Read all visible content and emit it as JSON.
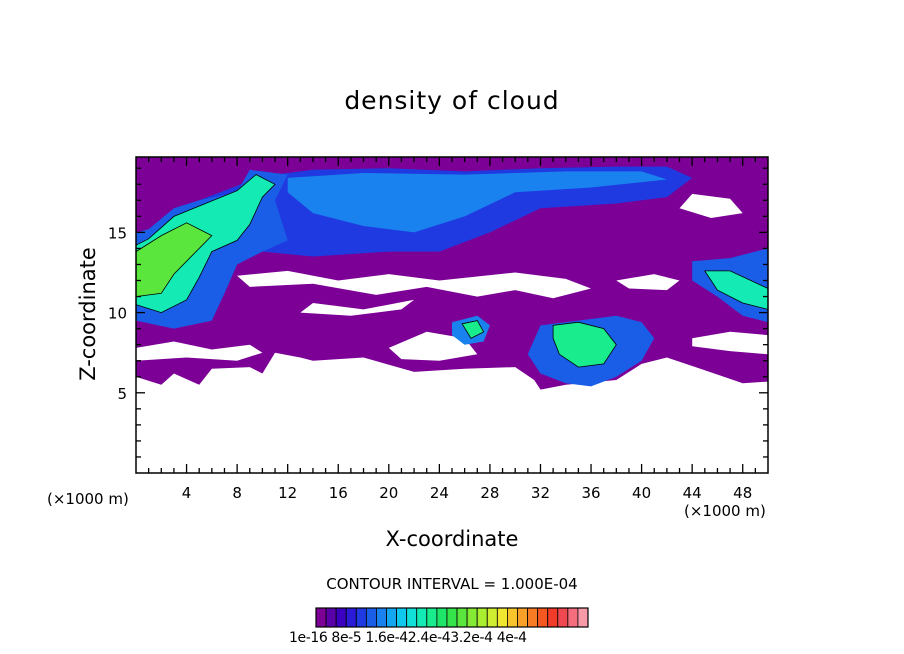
{
  "chart_data": {
    "type": "heatmap",
    "title": "density of cloud",
    "xlabel": "X-coordinate",
    "ylabel": "Z-coordinate",
    "x_unit": "(×1000 m)",
    "xlim": [
      0,
      50
    ],
    "ylim": [
      0,
      19.7
    ],
    "x_ticks": [
      4,
      8,
      12,
      16,
      20,
      24,
      28,
      32,
      36,
      40,
      44,
      48
    ],
    "y_ticks": [
      5,
      10,
      15
    ],
    "contour_interval": "CONTOUR INTERVAL = 1.000E-04",
    "colorbar": {
      "labels_text": "1e-16 8e-5 1.6e-42.4e-43.2e-4 4e-4",
      "labels": [
        "1e-16",
        "8e-5",
        "1.6e-4",
        "2.4e-4",
        "3.2e-4",
        "4e-4"
      ],
      "colors": [
        "#7c0096",
        "#5a00a8",
        "#3c00c0",
        "#2b1ad6",
        "#1f3ae0",
        "#1a5ee8",
        "#1a82ee",
        "#14a6f0",
        "#10c8ee",
        "#10e0d8",
        "#14eab4",
        "#18ec8c",
        "#1ee66a",
        "#34e44a",
        "#5ae63c",
        "#84ea34",
        "#aaee30",
        "#d0ee30",
        "#f0e830",
        "#f8c42c",
        "#f8a028",
        "#f87c24",
        "#f45820",
        "#f03c28",
        "#f04850",
        "#f46e7e",
        "#f89aa8"
      ]
    },
    "regions": [
      {
        "name": "lower-cloud-layer",
        "level": 0,
        "polygon": [
          [
            0,
            6.0
          ],
          [
            2,
            5.5
          ],
          [
            3,
            6.2
          ],
          [
            5,
            5.5
          ],
          [
            6,
            6.5
          ],
          [
            9,
            6.6
          ],
          [
            10,
            6.2
          ],
          [
            11,
            7.5
          ],
          [
            13,
            7.2
          ],
          [
            14,
            7.0
          ],
          [
            18,
            7.2
          ],
          [
            22,
            6.3
          ],
          [
            26,
            6.5
          ],
          [
            30,
            6.6
          ],
          [
            31.5,
            5.8
          ],
          [
            32,
            5.2
          ],
          [
            34,
            5.5
          ],
          [
            38,
            5.8
          ],
          [
            40,
            6.8
          ],
          [
            42,
            7.2
          ],
          [
            45,
            6.4
          ],
          [
            48,
            5.6
          ],
          [
            50,
            5.7
          ],
          [
            50,
            19.7
          ],
          [
            0,
            19.7
          ]
        ]
      },
      {
        "name": "gap-center",
        "level": -1,
        "polygon": [
          [
            8,
            12.3
          ],
          [
            12,
            12.6
          ],
          [
            16,
            12.0
          ],
          [
            20,
            12.4
          ],
          [
            24,
            12.0
          ],
          [
            30,
            12.5
          ],
          [
            34,
            12.1
          ],
          [
            36,
            11.5
          ],
          [
            33,
            10.9
          ],
          [
            30,
            11.4
          ],
          [
            27,
            11.0
          ],
          [
            23,
            11.6
          ],
          [
            19,
            11.1
          ],
          [
            14,
            11.8
          ],
          [
            9,
            11.6
          ]
        ]
      },
      {
        "name": "gap-left",
        "level": -1,
        "polygon": [
          [
            0,
            7.8
          ],
          [
            3,
            8.2
          ],
          [
            6,
            7.7
          ],
          [
            9,
            8.0
          ],
          [
            10,
            7.5
          ],
          [
            8,
            7.0
          ],
          [
            4,
            7.2
          ],
          [
            0,
            7.0
          ]
        ]
      },
      {
        "name": "gap-right",
        "level": -1,
        "polygon": [
          [
            44,
            17.4
          ],
          [
            47,
            17.1
          ],
          [
            48,
            16.2
          ],
          [
            45.5,
            15.9
          ],
          [
            43,
            16.5
          ]
        ]
      },
      {
        "name": "gap-right-mid",
        "level": -1,
        "polygon": [
          [
            38,
            12.0
          ],
          [
            41,
            12.4
          ],
          [
            43,
            12.0
          ],
          [
            42,
            11.4
          ],
          [
            39,
            11.5
          ]
        ]
      },
      {
        "name": "gap-right-low",
        "level": -1,
        "polygon": [
          [
            44,
            8.4
          ],
          [
            47,
            8.8
          ],
          [
            50,
            8.6
          ],
          [
            50,
            7.4
          ],
          [
            47,
            7.6
          ],
          [
            44,
            7.9
          ]
        ]
      },
      {
        "name": "gap-mid-low",
        "level": -1,
        "polygon": [
          [
            20,
            7.8
          ],
          [
            23,
            8.8
          ],
          [
            26,
            8.4
          ],
          [
            27,
            7.4
          ],
          [
            24,
            7.0
          ],
          [
            21,
            7.1
          ]
        ]
      },
      {
        "name": "gap-band",
        "level": -1,
        "polygon": [
          [
            14,
            10.6
          ],
          [
            18,
            10.2
          ],
          [
            22,
            10.8
          ],
          [
            21,
            10.2
          ],
          [
            17,
            9.8
          ],
          [
            13,
            10.0
          ]
        ]
      },
      {
        "name": "upper-blue-band",
        "level": 4,
        "polygon": [
          [
            5,
            17.0
          ],
          [
            10,
            18.5
          ],
          [
            14,
            18.9
          ],
          [
            20,
            19.0
          ],
          [
            26,
            18.8
          ],
          [
            32,
            19.0
          ],
          [
            38,
            19.1
          ],
          [
            42,
            19.1
          ],
          [
            44,
            18.4
          ],
          [
            42,
            17.2
          ],
          [
            38,
            16.8
          ],
          [
            32,
            16.5
          ],
          [
            28,
            15.0
          ],
          [
            24,
            13.8
          ],
          [
            20,
            13.8
          ],
          [
            14,
            13.5
          ],
          [
            10,
            13.8
          ],
          [
            6,
            14.4
          ],
          [
            3,
            15.2
          ]
        ]
      },
      {
        "name": "upper-band-core",
        "level": 6,
        "polygon": [
          [
            12,
            18.4
          ],
          [
            18,
            18.7
          ],
          [
            26,
            18.6
          ],
          [
            34,
            18.8
          ],
          [
            40,
            18.8
          ],
          [
            42,
            18.3
          ],
          [
            36,
            17.8
          ],
          [
            30,
            17.5
          ],
          [
            26,
            16.0
          ],
          [
            22,
            15.0
          ],
          [
            18,
            15.4
          ],
          [
            14,
            16.2
          ],
          [
            12,
            17.5
          ]
        ]
      },
      {
        "name": "left-cloud-outer",
        "level": 5,
        "polygon": [
          [
            0,
            9.5
          ],
          [
            3,
            9.0
          ],
          [
            6,
            9.5
          ],
          [
            7,
            11.2
          ],
          [
            8,
            13.0
          ],
          [
            10,
            13.8
          ],
          [
            12,
            14.5
          ],
          [
            11,
            17.0
          ],
          [
            12,
            18.6
          ],
          [
            9,
            18.9
          ],
          [
            8,
            17.5
          ],
          [
            5,
            17.0
          ],
          [
            3,
            16.5
          ],
          [
            1,
            15.2
          ],
          [
            0,
            15.0
          ]
        ]
      },
      {
        "name": "left-cloud-mid",
        "level": 10,
        "polygon": [
          [
            0,
            10.5
          ],
          [
            2,
            10.0
          ],
          [
            4,
            10.8
          ],
          [
            5,
            12.2
          ],
          [
            6,
            13.8
          ],
          [
            8,
            14.5
          ],
          [
            9,
            15.5
          ],
          [
            10,
            17.2
          ],
          [
            11,
            18.0
          ],
          [
            9.5,
            18.6
          ],
          [
            8,
            17.6
          ],
          [
            5.5,
            16.8
          ],
          [
            3,
            16.0
          ],
          [
            1,
            14.6
          ],
          [
            0,
            14.2
          ]
        ]
      },
      {
        "name": "left-cloud-core",
        "level": 14,
        "polygon": [
          [
            0,
            11.0
          ],
          [
            2,
            11.2
          ],
          [
            3,
            12.4
          ],
          [
            4.5,
            13.6
          ],
          [
            6,
            14.8
          ],
          [
            4,
            15.6
          ],
          [
            2,
            14.8
          ],
          [
            0,
            13.8
          ]
        ]
      },
      {
        "name": "right-cloud-outer",
        "level": 5,
        "polygon": [
          [
            44,
            13.2
          ],
          [
            47,
            13.4
          ],
          [
            50,
            14.0
          ],
          [
            50,
            9.4
          ],
          [
            48,
            9.8
          ],
          [
            46,
            11.0
          ],
          [
            44,
            12.0
          ]
        ]
      },
      {
        "name": "right-cloud-core",
        "level": 10,
        "polygon": [
          [
            45,
            12.6
          ],
          [
            47,
            12.6
          ],
          [
            50,
            11.5
          ],
          [
            50,
            10.2
          ],
          [
            48,
            10.6
          ],
          [
            46,
            11.4
          ]
        ]
      },
      {
        "name": "mid-cloud-outer",
        "level": 5,
        "polygon": [
          [
            32,
            9.2
          ],
          [
            36,
            9.6
          ],
          [
            38,
            9.8
          ],
          [
            40,
            9.4
          ],
          [
            41,
            8.4
          ],
          [
            40,
            7.0
          ],
          [
            38,
            6.0
          ],
          [
            36,
            5.4
          ],
          [
            34,
            5.6
          ],
          [
            32,
            6.2
          ],
          [
            31,
            7.4
          ]
        ]
      },
      {
        "name": "mid-cloud-core",
        "level": 11,
        "polygon": [
          [
            33,
            9.2
          ],
          [
            35,
            9.4
          ],
          [
            37,
            9.0
          ],
          [
            38,
            8.0
          ],
          [
            37,
            6.8
          ],
          [
            35,
            6.6
          ],
          [
            33.5,
            7.4
          ],
          [
            33,
            8.4
          ]
        ]
      },
      {
        "name": "small-cloud-26",
        "level": 6,
        "polygon": [
          [
            25,
            9.4
          ],
          [
            27,
            9.8
          ],
          [
            28,
            9.2
          ],
          [
            27.5,
            8.2
          ],
          [
            26,
            8.0
          ],
          [
            25,
            8.6
          ]
        ]
      },
      {
        "name": "small-cloud-26-core",
        "level": 11,
        "polygon": [
          [
            25.8,
            9.3
          ],
          [
            27,
            9.5
          ],
          [
            27.5,
            8.8
          ],
          [
            26.5,
            8.4
          ]
        ]
      }
    ]
  }
}
